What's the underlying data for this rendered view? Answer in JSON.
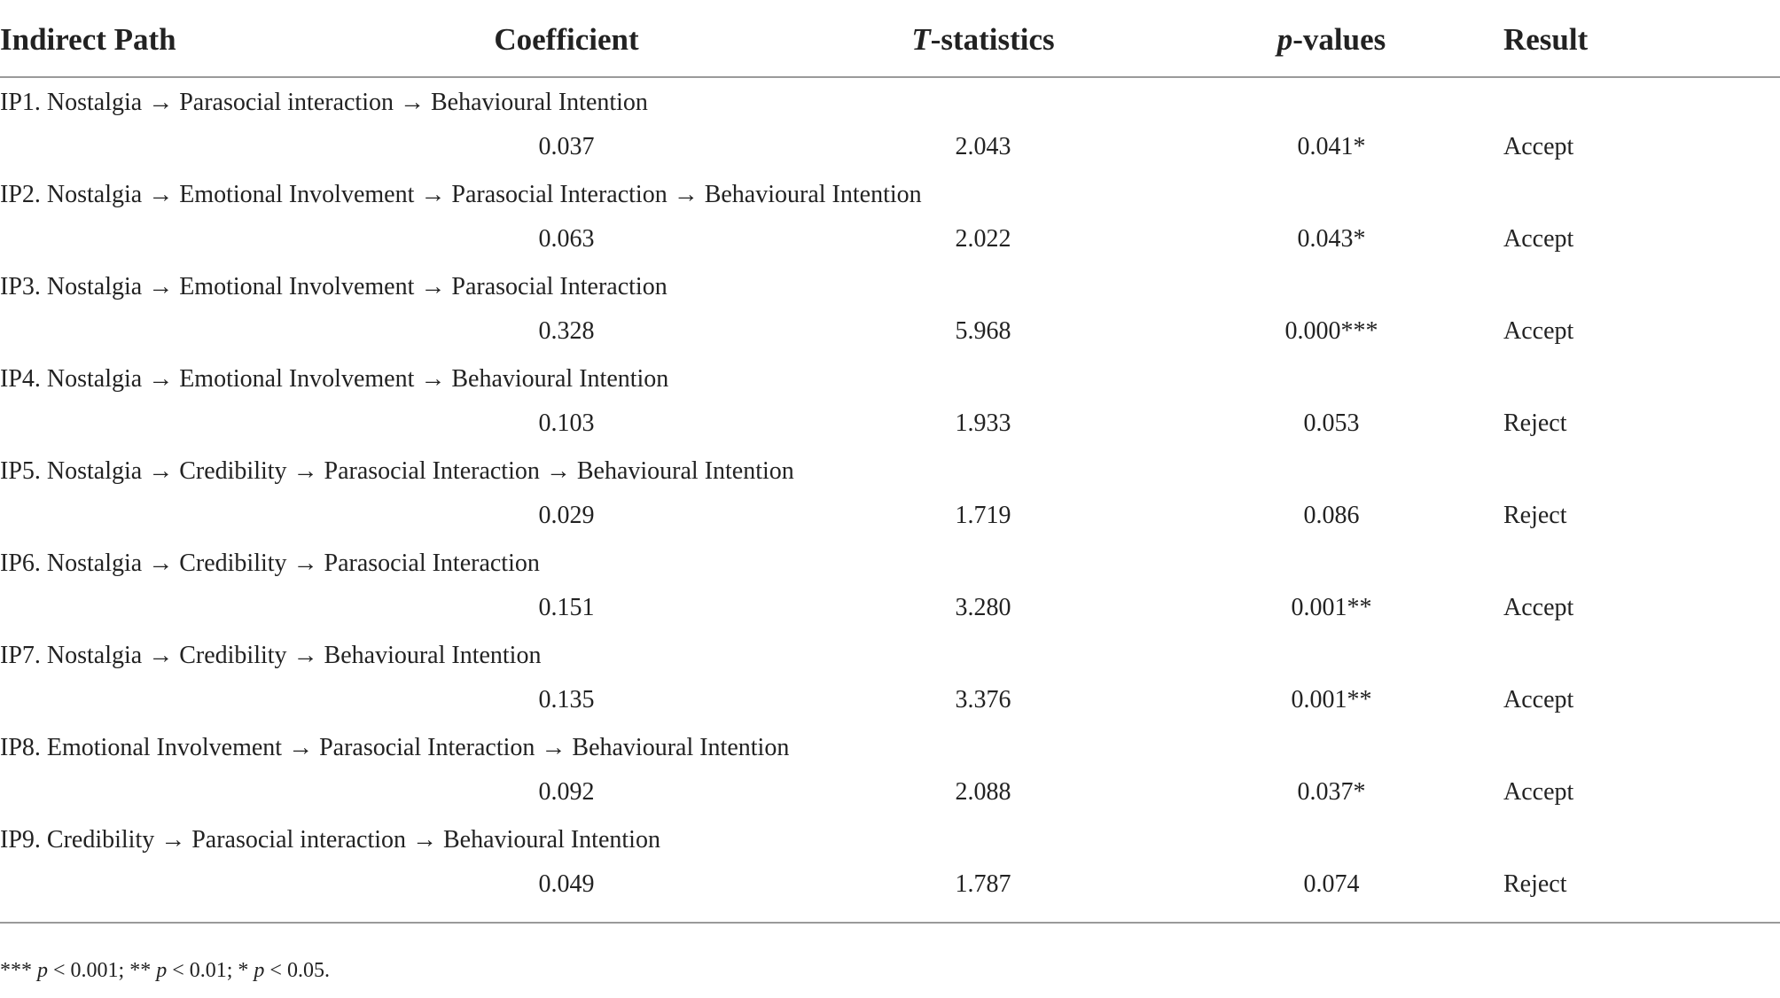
{
  "table": {
    "headers": {
      "indirect_path": "Indirect Path",
      "coefficient": "Coefficient",
      "t_stat_italic": "T",
      "t_stat_rest": "-statistics",
      "p_italic": "p",
      "p_rest": "-values",
      "result": "Result"
    },
    "rows": [
      {
        "path": "IP1. Nostalgia → Parasocial interaction → Behavioural Intention",
        "coefficient": "0.037",
        "t": "2.043",
        "p": "0.041*",
        "result": "Accept"
      },
      {
        "path": "IP2. Nostalgia → Emotional Involvement → Parasocial Interaction → Behavioural Intention",
        "coefficient": "0.063",
        "t": "2.022",
        "p": "0.043*",
        "result": "Accept"
      },
      {
        "path": "IP3. Nostalgia → Emotional Involvement → Parasocial Interaction",
        "coefficient": "0.328",
        "t": "5.968",
        "p": "0.000***",
        "result": "Accept"
      },
      {
        "path": "IP4. Nostalgia → Emotional Involvement → Behavioural Intention",
        "coefficient": "0.103",
        "t": "1.933",
        "p": "0.053",
        "result": "Reject"
      },
      {
        "path": "IP5. Nostalgia → Credibility → Parasocial Interaction → Behavioural Intention",
        "coefficient": "0.029",
        "t": "1.719",
        "p": "0.086",
        "result": "Reject"
      },
      {
        "path": "IP6. Nostalgia → Credibility → Parasocial Interaction",
        "coefficient": "0.151",
        "t": "3.280",
        "p": "0.001**",
        "result": "Accept"
      },
      {
        "path": "IP7. Nostalgia → Credibility → Behavioural Intention",
        "coefficient": "0.135",
        "t": "3.376",
        "p": "0.001**",
        "result": "Accept"
      },
      {
        "path": "IP8. Emotional Involvement → Parasocial Interaction → Behavioural Intention",
        "coefficient": "0.092",
        "t": "2.088",
        "p": "0.037*",
        "result": "Accept"
      },
      {
        "path": "IP9. Credibility → Parasocial interaction → Behavioural Intention",
        "coefficient": "0.049",
        "t": "1.787",
        "p": "0.074",
        "result": "Reject"
      }
    ]
  },
  "footnote": {
    "part1": "*** ",
    "p1": "p",
    "part2": " < 0.001; ** ",
    "p2": "p",
    "part3": " < 0.01; * ",
    "p3": "p",
    "part4": " < 0.05."
  }
}
